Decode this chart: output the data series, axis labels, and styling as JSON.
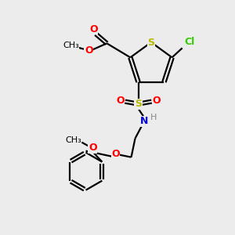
{
  "bg_color": "#ececec",
  "colors": {
    "S": "#b8b800",
    "O": "#ff0000",
    "N": "#0000cc",
    "Cl": "#33cc00",
    "H": "#888888",
    "C": "#000000"
  },
  "figsize": [
    3.0,
    3.0
  ],
  "dpi": 100
}
